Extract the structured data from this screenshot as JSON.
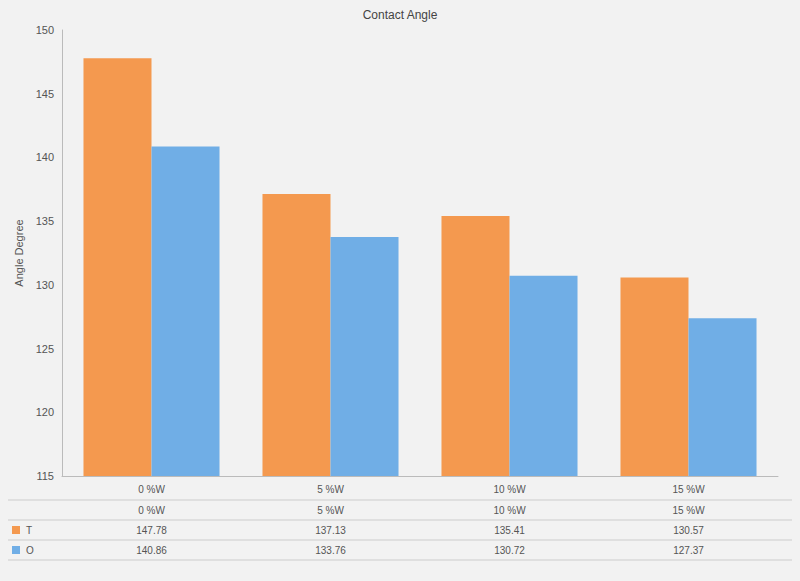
{
  "chart_data": {
    "type": "bar",
    "title": "Contact Angle",
    "y_label": "Angle Degree",
    "categories": [
      "0 %W",
      "5 %W",
      "10 %W",
      "15 %W"
    ],
    "series": [
      {
        "name": "T",
        "color": "#f4994f",
        "values": [
          147.78,
          137.13,
          135.41,
          130.57
        ]
      },
      {
        "name": "O",
        "color": "#70aee6",
        "values": [
          140.86,
          133.76,
          130.72,
          127.37
        ]
      }
    ],
    "ylim": [
      115,
      150
    ],
    "yticks": [
      115,
      120,
      125,
      130,
      135,
      140,
      145,
      150
    ],
    "grid": false
  }
}
